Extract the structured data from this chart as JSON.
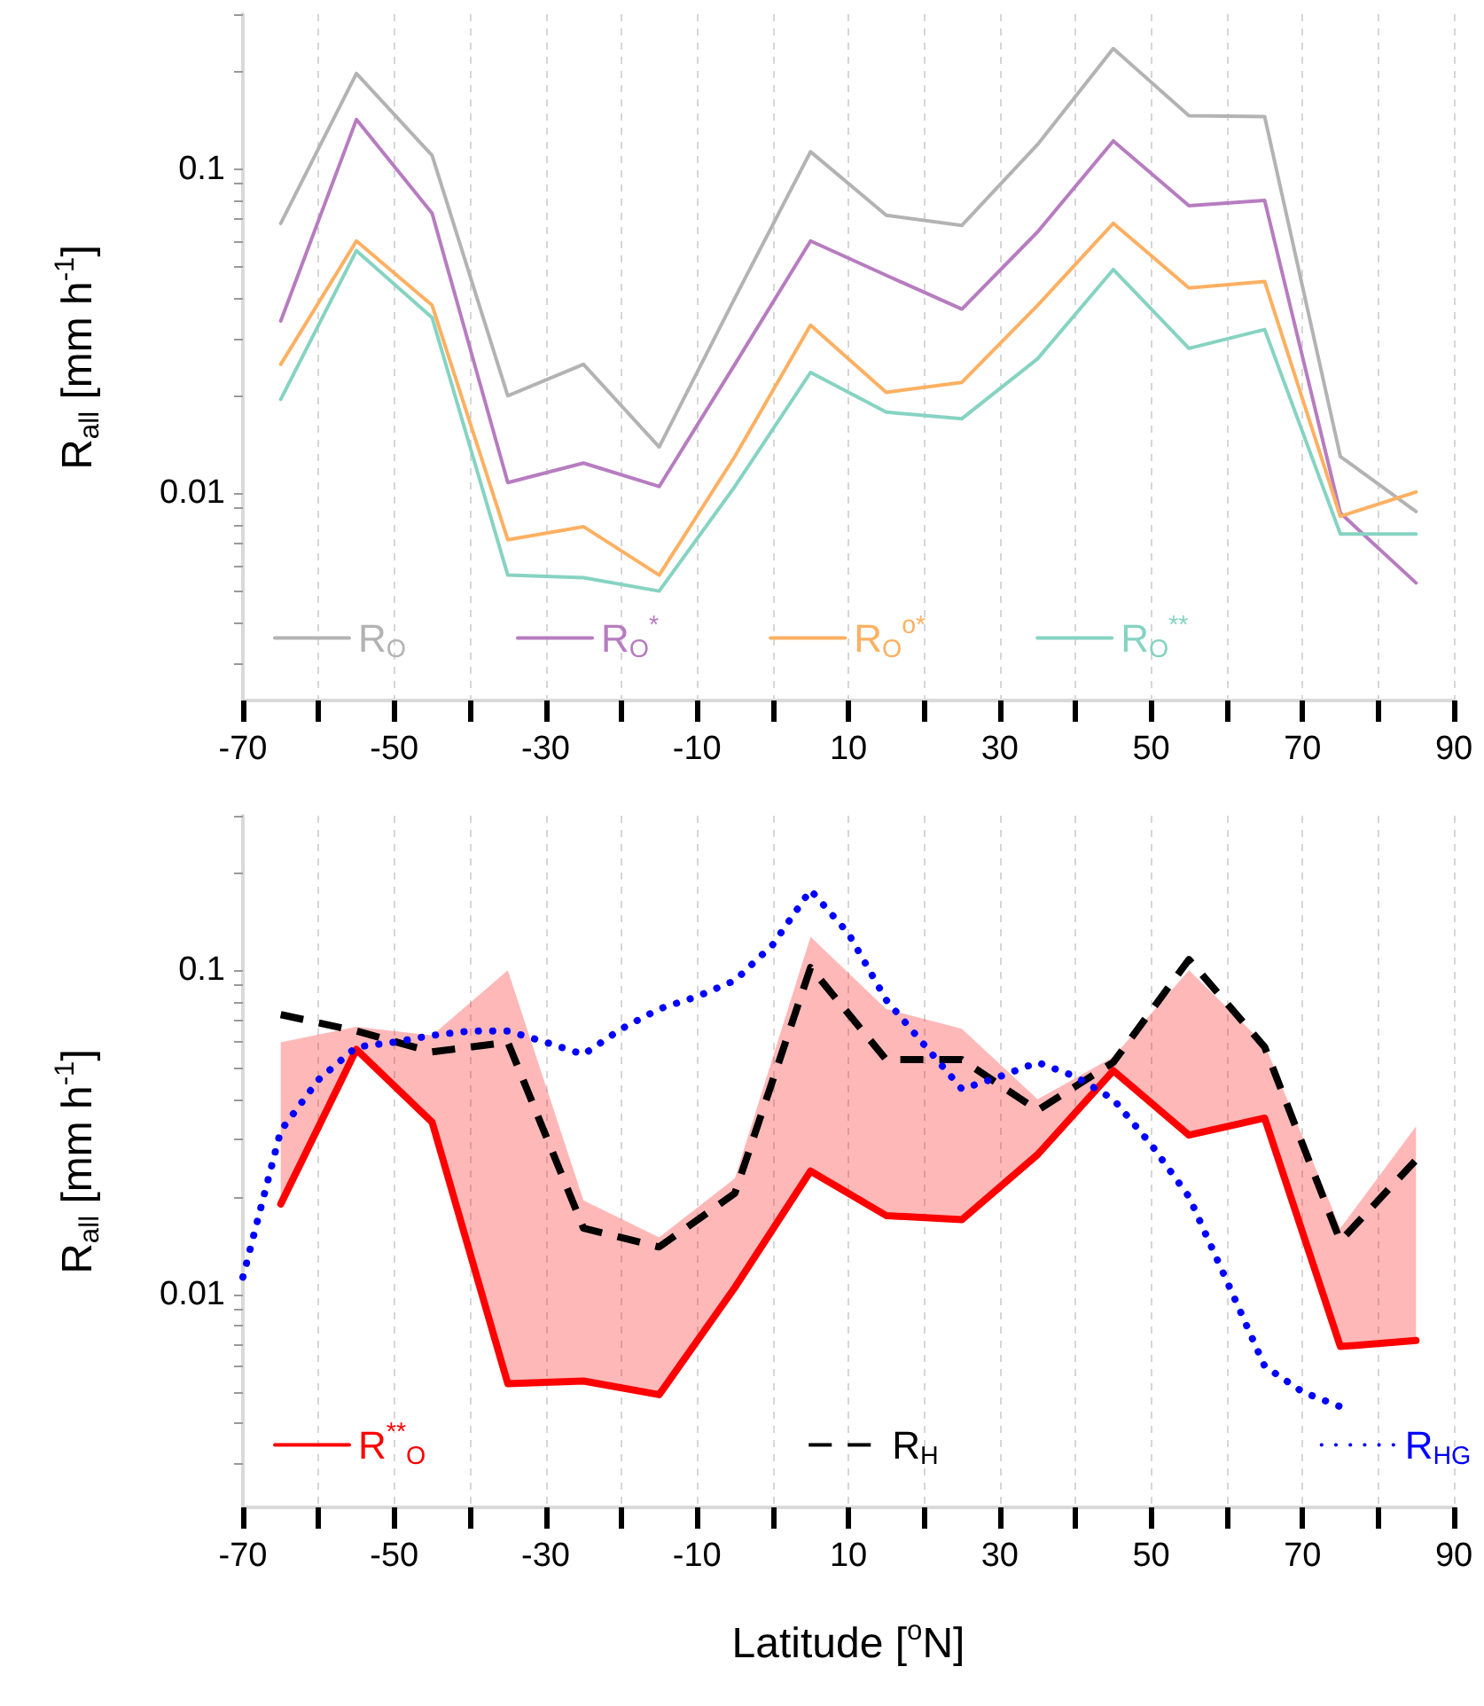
{
  "chart_data": [
    {
      "type": "line",
      "ylabel": "R$_{all}$ [mm h$^{-1}$]",
      "x": [
        -65,
        -55,
        -45,
        -35,
        -25,
        -15,
        -5,
        5,
        15,
        25,
        35,
        45,
        55,
        65,
        75,
        85
      ],
      "series": [
        {
          "name": "R$_{O}$",
          "color": "#b3b3b3",
          "values": [
            0.068,
            0.197,
            0.11,
            0.02,
            0.025,
            0.0139,
            0.04,
            0.113,
            0.072,
            0.067,
            0.119,
            0.235,
            0.146,
            0.145,
            0.013,
            0.0088
          ]
        },
        {
          "name": "R$_{O}$$^{*}$",
          "color": "#b77cc0",
          "values": [
            0.034,
            0.142,
            0.073,
            0.0108,
            0.0124,
            0.0105,
            0.025,
            0.06,
            0.047,
            0.037,
            0.064,
            0.122,
            0.077,
            0.08,
            0.0087,
            0.0053
          ]
        },
        {
          "name": "R$_{O}$$^{o*}$",
          "color": "#fdb062",
          "values": [
            0.025,
            0.06,
            0.038,
            0.0072,
            0.0079,
            0.0056,
            0.013,
            0.033,
            0.0205,
            0.022,
            0.038,
            0.068,
            0.043,
            0.045,
            0.0085,
            0.0101
          ]
        },
        {
          "name": "R$_{O}$$^{**}$",
          "color": "#86d3c2",
          "values": [
            0.0195,
            0.056,
            0.0348,
            0.0056,
            0.0055,
            0.005,
            0.0105,
            0.0236,
            0.0178,
            0.017,
            0.026,
            0.049,
            0.028,
            0.032,
            0.0075,
            0.0075
          ]
        }
      ],
      "xlim": [
        -70,
        90
      ],
      "xticks": [
        -70,
        {
          "value": -60,
          "label": null
        },
        -50,
        {
          "value": -40,
          "label": null
        },
        -30,
        {
          "value": -20,
          "label": null
        },
        -10,
        {
          "value": 0,
          "label": null
        },
        10,
        {
          "value": 20,
          "label": null
        },
        30,
        {
          "value": 40,
          "label": null
        },
        50,
        {
          "value": 60,
          "label": null
        },
        70,
        {
          "value": 80,
          "label": null
        },
        90
      ],
      "ylim": [
        0.0023,
        0.3
      ],
      "yticks": [
        {
          "value": 0.003,
          "label": null
        },
        {
          "value": 0.004,
          "label": null
        },
        {
          "value": 0.005,
          "label": null
        },
        {
          "value": 0.006,
          "label": null
        },
        {
          "value": 0.007,
          "label": null
        },
        {
          "value": 0.008,
          "label": null
        },
        {
          "value": 0.009,
          "label": null
        },
        {
          "value": 0.01,
          "label": "0.01"
        },
        {
          "value": 0.02,
          "label": null
        },
        {
          "value": 0.03,
          "label": null
        },
        {
          "value": 0.04,
          "label": null
        },
        {
          "value": 0.05,
          "label": null
        },
        {
          "value": 0.06,
          "label": null
        },
        {
          "value": 0.07,
          "label": null
        },
        {
          "value": 0.08,
          "label": null
        },
        {
          "value": 0.09,
          "label": null
        },
        {
          "value": 0.1,
          "label": "0.1"
        },
        {
          "value": 0.2,
          "label": null
        },
        {
          "value": 0.3,
          "label": null
        }
      ],
      "log": "y",
      "grid": "x",
      "legend": "bottom left",
      "line_style": "solid"
    },
    {
      "type": "line",
      "ylabel": "R$_{all}$ [mm h$^{-1}$]",
      "xlabel": "Latitude [$^{o}$N]",
      "series": [
        {
          "name": "R$^{**}$$_{O}$",
          "color": "#ff0000",
          "line_style": "solid",
          "x": [
            -65,
            -55,
            -45,
            -35,
            -25,
            -15,
            -5,
            5,
            15,
            25,
            35,
            45,
            55,
            65,
            75,
            85
          ],
          "values": [
            0.019,
            0.057,
            0.034,
            0.0053,
            0.0054,
            0.0049,
            0.0105,
            0.024,
            0.0175,
            0.017,
            0.027,
            0.049,
            0.031,
            0.035,
            0.0069,
            0.0072
          ],
          "lower": [
            0.019,
            0.057,
            0.034,
            0.0053,
            0.0054,
            0.0049,
            0.0105,
            0.024,
            0.0175,
            0.017,
            0.027,
            0.049,
            0.031,
            0.035,
            0.0069,
            0.0072
          ],
          "upper": [
            0.06,
            0.067,
            0.063,
            0.1,
            0.0195,
            0.015,
            0.0228,
            0.127,
            0.076,
            0.066,
            0.04,
            0.054,
            0.1,
            0.059,
            0.016,
            0.033
          ]
        },
        {
          "name": "R$_{H}$",
          "color": "#000000",
          "line_style": "dashed",
          "x": [
            -65,
            -55,
            -45,
            -35,
            -25,
            -15,
            -5,
            5,
            15,
            25,
            35,
            45,
            55,
            65,
            75,
            85
          ],
          "values": [
            0.073,
            0.065,
            0.056,
            0.06,
            0.016,
            0.014,
            0.0205,
            0.102,
            0.053,
            0.053,
            0.037,
            0.052,
            0.108,
            0.058,
            0.0146,
            0.026
          ]
        },
        {
          "name": "R$_{H}$$_{G}$",
          "color": "#0000ff",
          "line_style": "dotted",
          "x": [
            -70,
            -65,
            -60,
            -55,
            -50,
            -45,
            -40,
            -35,
            -30,
            -25,
            -20,
            -15,
            -10,
            -5,
            0,
            5,
            10,
            15,
            20,
            25,
            30,
            35,
            40,
            45,
            50,
            55,
            60,
            65,
            70,
            75
          ],
          "values": [
            0.0113,
            0.032,
            0.046,
            0.058,
            0.06,
            0.063,
            0.065,
            0.065,
            0.06,
            0.055,
            0.066,
            0.076,
            0.083,
            0.093,
            0.12,
            0.177,
            0.13,
            0.081,
            0.059,
            0.043,
            0.047,
            0.052,
            0.047,
            0.04,
            0.029,
            0.02,
            0.011,
            0.006,
            0.005,
            0.0045
          ]
        }
      ],
      "xlim": [
        -70,
        90
      ],
      "xticks": [
        -70,
        {
          "value": -60,
          "label": null
        },
        -50,
        {
          "value": -40,
          "label": null
        },
        -30,
        {
          "value": -20,
          "label": null
        },
        -10,
        {
          "value": 0,
          "label": null
        },
        10,
        {
          "value": 20,
          "label": null
        },
        30,
        {
          "value": 40,
          "label": null
        },
        50,
        {
          "value": 60,
          "label": null
        },
        70,
        {
          "value": 80,
          "label": null
        },
        90
      ],
      "ylim": [
        0.0022,
        0.3
      ],
      "yticks": [
        {
          "value": 0.003,
          "label": null
        },
        {
          "value": 0.004,
          "label": null
        },
        {
          "value": 0.005,
          "label": null
        },
        {
          "value": 0.006,
          "label": null
        },
        {
          "value": 0.007,
          "label": null
        },
        {
          "value": 0.008,
          "label": null
        },
        {
          "value": 0.009,
          "label": null
        },
        {
          "value": 0.01,
          "label": "0.01"
        },
        {
          "value": 0.02,
          "label": null
        },
        {
          "value": 0.03,
          "label": null
        },
        {
          "value": 0.04,
          "label": null
        },
        {
          "value": 0.05,
          "label": null
        },
        {
          "value": 0.06,
          "label": null
        },
        {
          "value": 0.07,
          "label": null
        },
        {
          "value": 0.08,
          "label": null
        },
        {
          "value": 0.09,
          "label": null
        },
        {
          "value": 0.1,
          "label": "0.1"
        },
        {
          "value": 0.2,
          "label": null
        },
        {
          "value": 0.3,
          "label": null
        }
      ],
      "log": "y",
      "grid": "x",
      "legend": "bottom"
    }
  ]
}
